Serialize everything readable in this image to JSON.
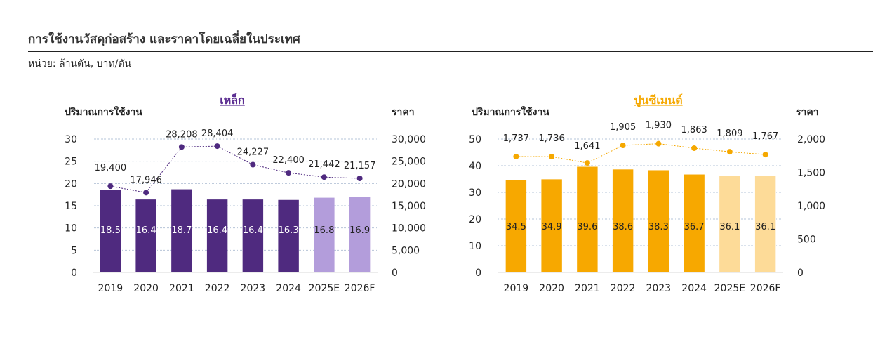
{
  "page": {
    "title": "การใช้งานวัสดุก่อสร้าง และราคาโดยเฉลี่ยในประเทศ",
    "subtitle": "หน่วย: ล้านตัน, บาท/ตัน"
  },
  "colors": {
    "steel_bar": "#4f2a7f",
    "steel_bar_forecast": "#b39ddb",
    "steel_line": "#4f2a7f",
    "steel_title": "#5b2d91",
    "cement_bar": "#f7a800",
    "cement_bar_forecast": "#fddb98",
    "cement_line": "#f5a800",
    "cement_title": "#f5a800",
    "gridline": "#b6c4d8",
    "axis_text": "#222222"
  },
  "chart_data": [
    {
      "type": "bar",
      "title": "เหล็ก",
      "left_axis_title": "ปริมาณการใช้งาน",
      "right_axis_title": "ราคา",
      "categories": [
        "2019",
        "2020",
        "2021",
        "2022",
        "2023",
        "2024",
        "2025E",
        "2026F"
      ],
      "forecast_flags": [
        false,
        false,
        false,
        false,
        false,
        false,
        true,
        true
      ],
      "series": [
        {
          "values": [
            18.5,
            16.4,
            18.7,
            16.4,
            16.4,
            16.3,
            16.8,
            16.9
          ],
          "value_labels": [
            "18.5",
            "16.4",
            "18.7",
            "16.4",
            "16.4",
            "16.3",
            "16.8",
            "16.9"
          ]
        },
        {
          "values": [
            19400,
            17946,
            28208,
            28404,
            24227,
            22400,
            21442,
            21157
          ],
          "value_labels": [
            "19,400",
            "17,946",
            "28,208",
            "28,404",
            "24,227",
            "22,400",
            "21,442",
            "21,157"
          ]
        }
      ],
      "ylim": [
        0,
        30
      ],
      "y_ticks": [
        "0",
        "5",
        "10",
        "15",
        "20",
        "25",
        "30"
      ],
      "y2lim": [
        0,
        30000
      ],
      "y2_ticks": [
        "0",
        "5,000",
        "10,000",
        "15,000",
        "20,000",
        "25,000",
        "30,000"
      ],
      "grid": true
    },
    {
      "type": "bar",
      "title": "ปูนซีเมนต์",
      "left_axis_title": "ปริมาณการใช้งาน",
      "right_axis_title": "ราคา",
      "categories": [
        "2019",
        "2020",
        "2021",
        "2022",
        "2023",
        "2024",
        "2025E",
        "2026F"
      ],
      "forecast_flags": [
        false,
        false,
        false,
        false,
        false,
        false,
        true,
        true
      ],
      "series": [
        {
          "values": [
            34.5,
            34.9,
            39.6,
            38.6,
            38.3,
            36.7,
            36.1,
            36.1
          ],
          "value_labels": [
            "34.5",
            "34.9",
            "39.6",
            "38.6",
            "38.3",
            "36.7",
            "36.1",
            "36.1"
          ]
        },
        {
          "values": [
            1737,
            1736,
            1641,
            1905,
            1930,
            1863,
            1809,
            1767
          ],
          "value_labels": [
            "1,737",
            "1,736",
            "1,641",
            "1,905",
            "1,930",
            "1,863",
            "1,809",
            "1,767"
          ]
        }
      ],
      "ylim": [
        0,
        50
      ],
      "y_ticks": [
        "0",
        "10",
        "20",
        "30",
        "40",
        "50"
      ],
      "y2lim": [
        0,
        2000
      ],
      "y2_ticks": [
        "0",
        "500",
        "1,000",
        "1,500",
        "2,000"
      ],
      "grid": true
    }
  ]
}
